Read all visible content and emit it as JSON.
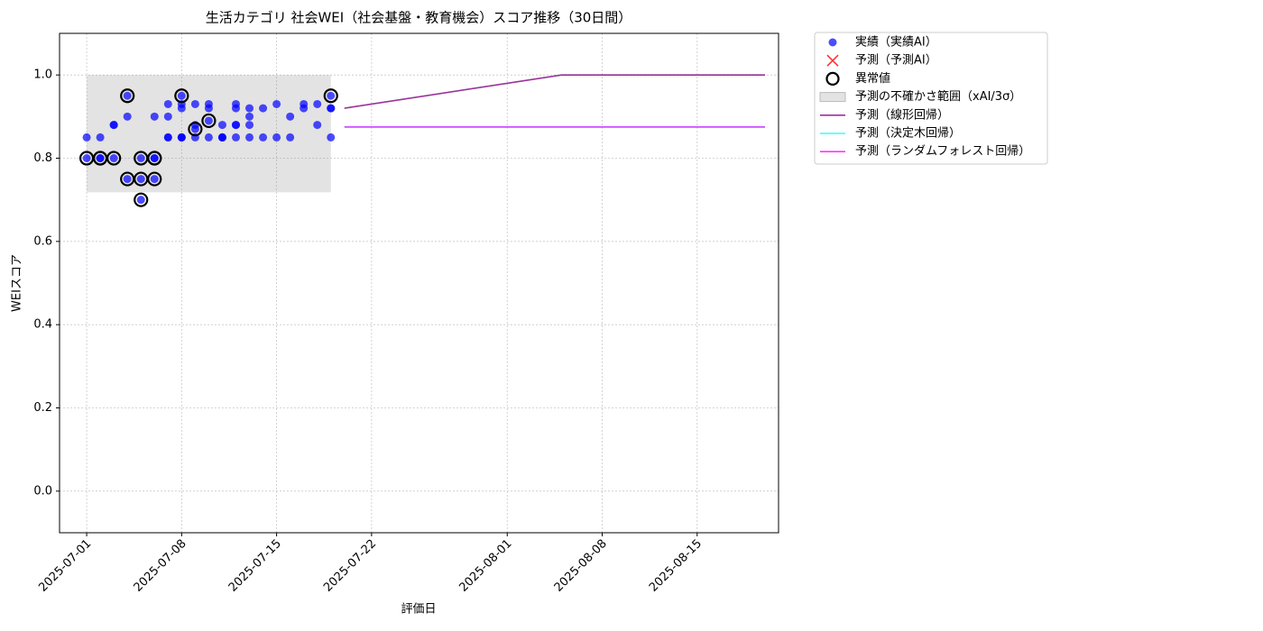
{
  "chart_data": {
    "type": "scatter",
    "title": "生活カテゴリ 社会WEI（社会基盤・教育機会）スコア推移（30日間）",
    "x_label": "評価日",
    "y_label": "WEIスコア",
    "xlim": [
      "2025-06-29",
      "2025-08-21"
    ],
    "xticks": [
      "2025-07-01",
      "2025-07-08",
      "2025-07-15",
      "2025-07-22",
      "2025-08-01",
      "2025-08-08",
      "2025-08-15"
    ],
    "ylim": [
      -0.1,
      1.1
    ],
    "yticks": [
      {
        "value": 0,
        "label": "0.0"
      },
      0.2,
      0.4,
      0.6,
      0.8,
      {
        "value": 1,
        "label": "1.0"
      }
    ],
    "grid": true,
    "legend": "outside upper right",
    "series": [
      {
        "name": "実績（実績AI）",
        "kind": "scatter",
        "color": "#0000ff",
        "x": [
          "2025-07-01",
          "2025-07-01",
          "2025-07-02",
          "2025-07-02",
          "2025-07-02",
          "2025-07-03",
          "2025-07-03",
          "2025-07-03",
          "2025-07-04",
          "2025-07-04",
          "2025-07-04",
          "2025-07-05",
          "2025-07-05",
          "2025-07-05",
          "2025-07-06",
          "2025-07-06",
          "2025-07-06",
          "2025-07-06",
          "2025-07-07",
          "2025-07-07",
          "2025-07-07",
          "2025-07-07",
          "2025-07-08",
          "2025-07-08",
          "2025-07-08",
          "2025-07-08",
          "2025-07-08",
          "2025-07-08",
          "2025-07-09",
          "2025-07-09",
          "2025-07-09",
          "2025-07-09",
          "2025-07-10",
          "2025-07-10",
          "2025-07-10",
          "2025-07-10",
          "2025-07-11",
          "2025-07-11",
          "2025-07-11",
          "2025-07-11",
          "2025-07-12",
          "2025-07-12",
          "2025-07-12",
          "2025-07-12",
          "2025-07-12",
          "2025-07-13",
          "2025-07-13",
          "2025-07-13",
          "2025-07-13",
          "2025-07-14",
          "2025-07-14",
          "2025-07-15",
          "2025-07-15",
          "2025-07-16",
          "2025-07-16",
          "2025-07-17",
          "2025-07-17",
          "2025-07-18",
          "2025-07-18",
          "2025-07-19",
          "2025-07-19",
          "2025-07-19",
          "2025-07-19"
        ],
        "values": [
          0.85,
          0.8,
          0.8,
          0.85,
          0.8,
          0.88,
          0.88,
          0.8,
          0.9,
          0.95,
          0.75,
          0.8,
          0.75,
          0.7,
          0.8,
          0.8,
          0.75,
          0.9,
          0.85,
          0.85,
          0.93,
          0.9,
          0.92,
          0.85,
          0.93,
          0.85,
          0.95,
          0.85,
          0.88,
          0.87,
          0.85,
          0.93,
          0.92,
          0.93,
          0.89,
          0.85,
          0.88,
          0.85,
          0.85,
          0.85,
          0.88,
          0.85,
          0.93,
          0.88,
          0.92,
          0.9,
          0.92,
          0.88,
          0.85,
          0.92,
          0.85,
          0.93,
          0.85,
          0.9,
          0.85,
          0.93,
          0.92,
          0.93,
          0.88,
          0.95,
          0.92,
          0.92,
          0.85
        ]
      },
      {
        "name": "予測（予測AI）",
        "kind": "cross",
        "color": "#ff0000",
        "x": [],
        "values": []
      },
      {
        "name": "異常値",
        "kind": "ring",
        "color": "#000000",
        "x": [
          "2025-07-01",
          "2025-07-02",
          "2025-07-02",
          "2025-07-03",
          "2025-07-04",
          "2025-07-04",
          "2025-07-05",
          "2025-07-05",
          "2025-07-05",
          "2025-07-06",
          "2025-07-06",
          "2025-07-06",
          "2025-07-08",
          "2025-07-09",
          "2025-07-10",
          "2025-07-19"
        ],
        "values": [
          0.8,
          0.8,
          0.8,
          0.8,
          0.95,
          0.75,
          0.8,
          0.75,
          0.7,
          0.8,
          0.8,
          0.75,
          0.95,
          0.87,
          0.89,
          0.95
        ]
      },
      {
        "name": "予測の不確かさ範囲（xAI/3σ）",
        "kind": "band",
        "color": "#808080",
        "x": [
          "2025-07-01",
          "2025-07-19"
        ],
        "lower": [
          0.718,
          0.718
        ],
        "upper": [
          1,
          1
        ]
      },
      {
        "name": "予測（線形回帰）",
        "kind": "line",
        "color": "#800080",
        "x": [
          "2025-07-20",
          "2025-08-05",
          "2025-08-20"
        ],
        "values": [
          0.92,
          1,
          1
        ]
      },
      {
        "name": "予測（決定木回帰）",
        "kind": "line",
        "color": "#00ffff",
        "x": [
          "2025-07-20",
          "2025-08-20"
        ],
        "values": [
          0.875,
          0.875
        ]
      },
      {
        "name": "予測（ランダムフォレスト回帰）",
        "kind": "line",
        "color": "#ff00ff",
        "x": [
          "2025-07-20",
          "2025-08-20"
        ],
        "values": [
          0.875,
          0.875
        ]
      }
    ]
  }
}
